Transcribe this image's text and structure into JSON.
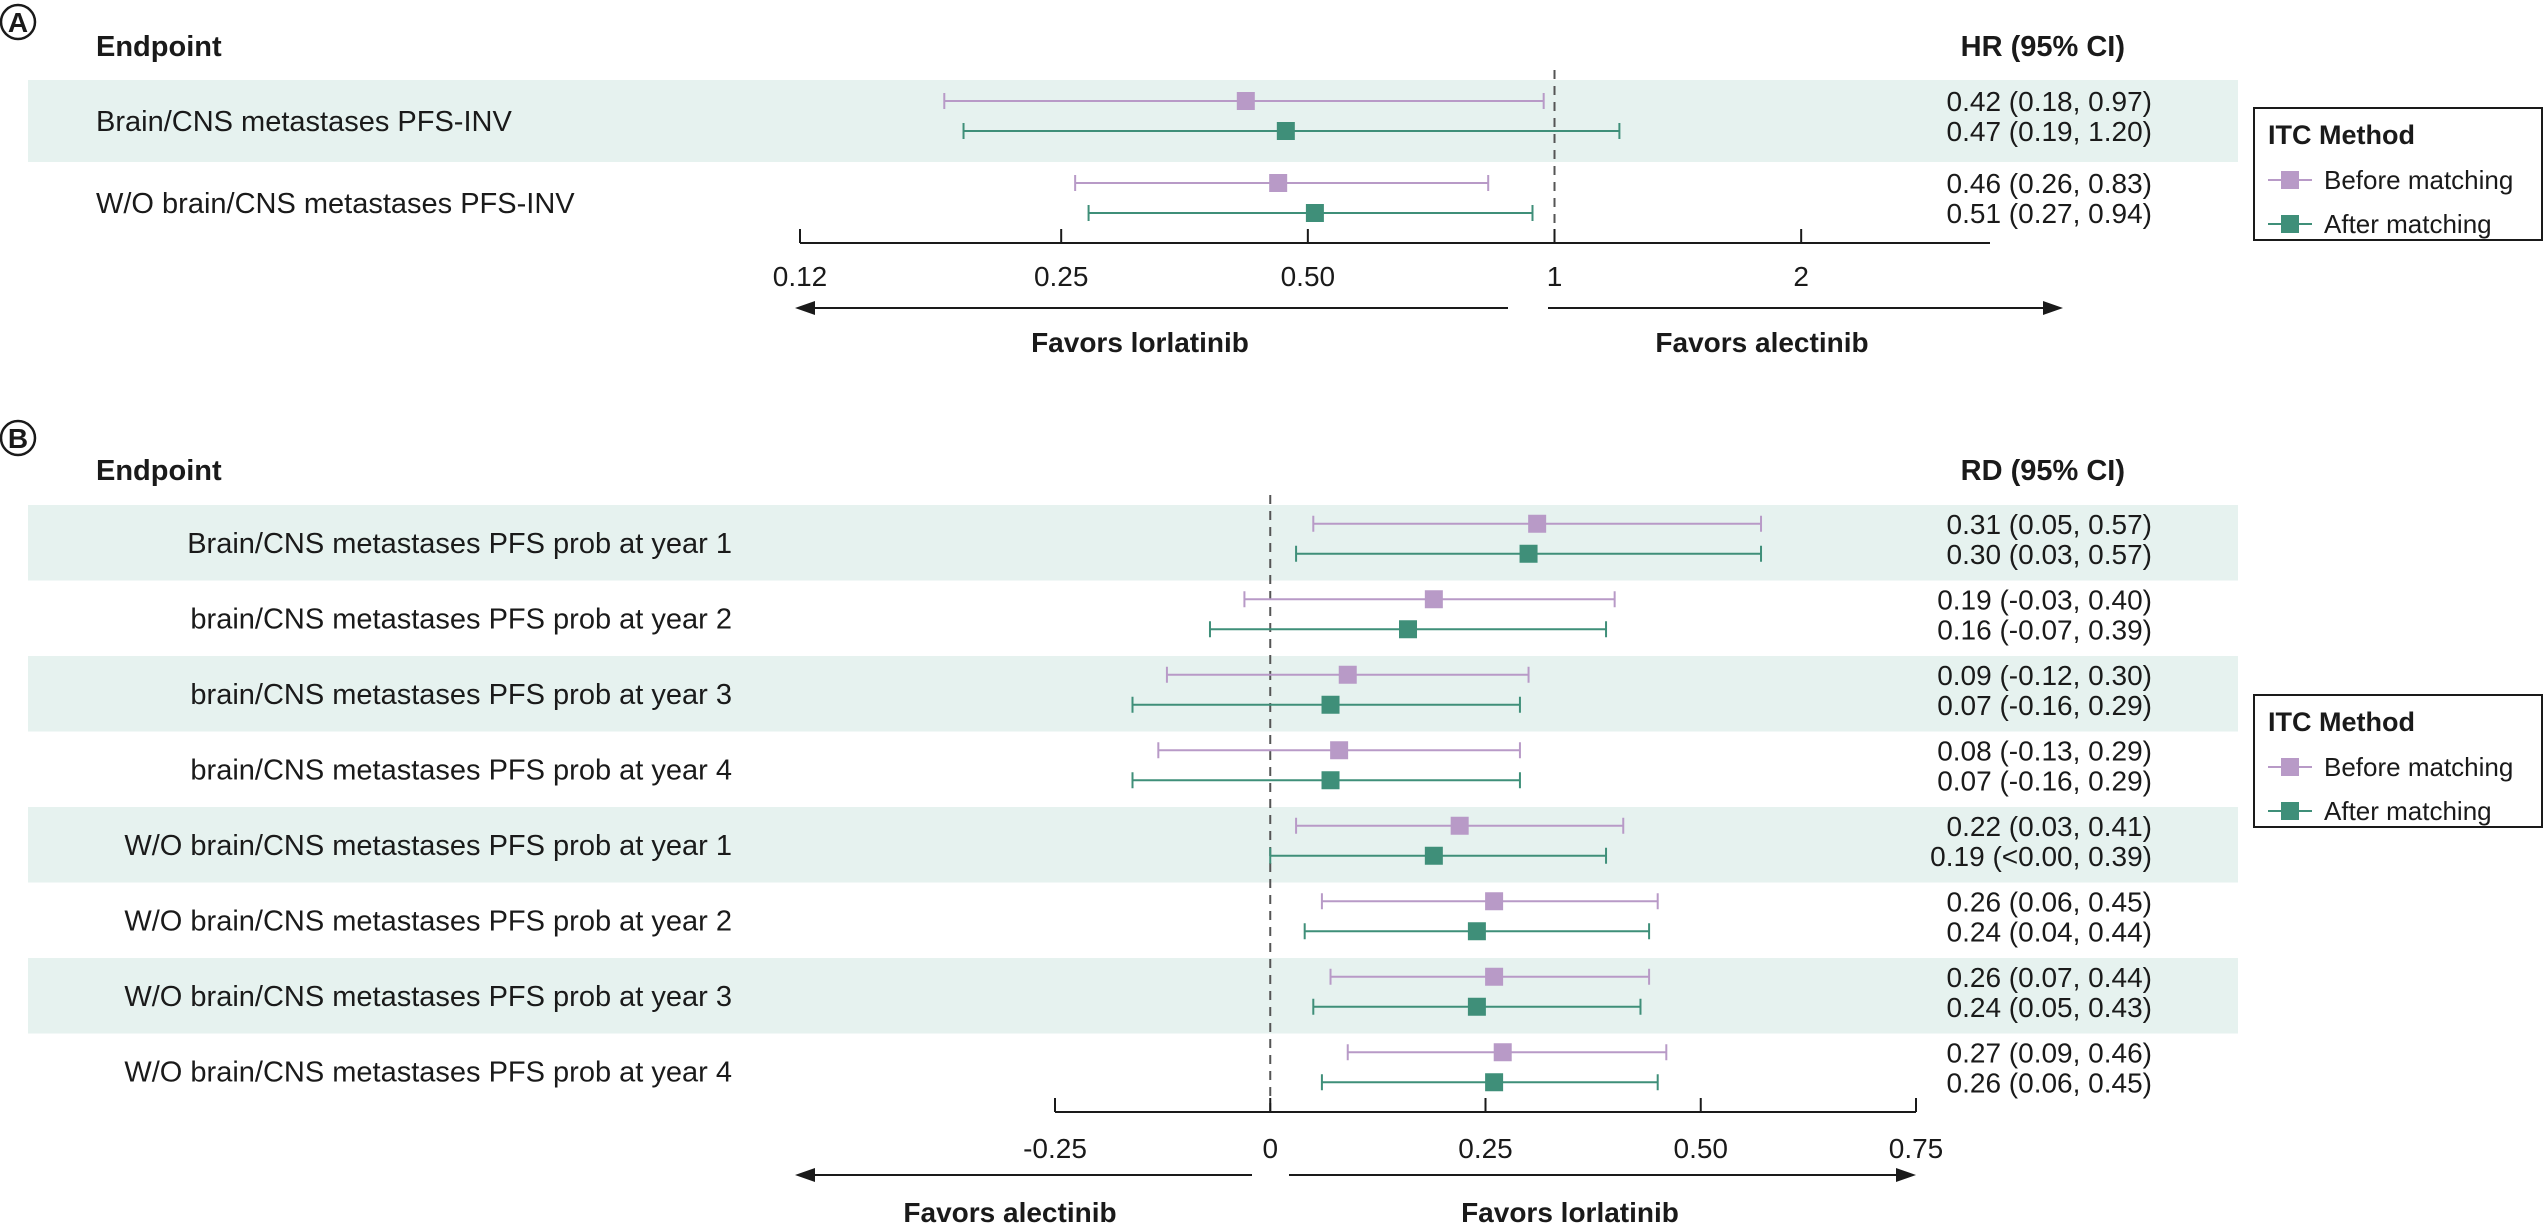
{
  "colors": {
    "before": "#b89ac7",
    "after": "#3f8f79",
    "band": "#e6f2ef",
    "text": "#1a1a1a"
  },
  "chart_data": [
    {
      "type": "forest",
      "panel_label": "A",
      "endpoint_header": "Endpoint",
      "estimate_header": "HR (95% CI)",
      "scale": "log",
      "xlim": [
        0.12,
        3.4
      ],
      "ticks": [
        0.12,
        0.25,
        0.5,
        1,
        2
      ],
      "tick_labels": [
        "0.12",
        "0.25",
        "0.50",
        "1",
        "2"
      ],
      "reference_line": 1,
      "direction_left": "Favors lorlatinib",
      "direction_right": "Favors alectinib",
      "legend": {
        "title": "ITC Method",
        "items": [
          "Before matching",
          "After matching"
        ],
        "placement": "right"
      },
      "rows": [
        {
          "endpoint": "Brain/CNS metastases PFS-INV",
          "before": {
            "est": 0.42,
            "lo": 0.18,
            "hi": 0.97,
            "label": "0.42 (0.18, 0.97)"
          },
          "after": {
            "est": 0.47,
            "lo": 0.19,
            "hi": 1.2,
            "label": "0.47 (0.19, 1.20)"
          }
        },
        {
          "endpoint": "W/O brain/CNS metastases PFS-INV",
          "before": {
            "est": 0.46,
            "lo": 0.26,
            "hi": 0.83,
            "label": "0.46 (0.26, 0.83)"
          },
          "after": {
            "est": 0.51,
            "lo": 0.27,
            "hi": 0.94,
            "label": "0.51 (0.27, 0.94)"
          }
        }
      ]
    },
    {
      "type": "forest",
      "panel_label": "B",
      "endpoint_header": "Endpoint",
      "estimate_header": "RD (95% CI)",
      "scale": "linear",
      "xlim": [
        -0.25,
        0.75
      ],
      "ticks": [
        -0.25,
        0,
        0.25,
        0.5,
        0.75
      ],
      "tick_labels": [
        "-0.25",
        "0",
        "0.25",
        "0.50",
        "0.75"
      ],
      "reference_line": 0,
      "direction_left": "Favors alectinib",
      "direction_right": "Favors lorlatinib",
      "legend": {
        "title": "ITC Method",
        "items": [
          "Before matching",
          "After matching"
        ],
        "placement": "right"
      },
      "rows": [
        {
          "endpoint": "Brain/CNS metastases PFS prob at year 1",
          "before": {
            "est": 0.31,
            "lo": 0.05,
            "hi": 0.57,
            "label": "0.31 (0.05, 0.57)"
          },
          "after": {
            "est": 0.3,
            "lo": 0.03,
            "hi": 0.57,
            "label": "0.30 (0.03, 0.57)"
          }
        },
        {
          "endpoint": "brain/CNS metastases PFS prob at year 2",
          "before": {
            "est": 0.19,
            "lo": -0.03,
            "hi": 0.4,
            "label": "0.19 (-0.03, 0.40)"
          },
          "after": {
            "est": 0.16,
            "lo": -0.07,
            "hi": 0.39,
            "label": "0.16 (-0.07, 0.39)"
          }
        },
        {
          "endpoint": "brain/CNS metastases PFS prob at year 3",
          "before": {
            "est": 0.09,
            "lo": -0.12,
            "hi": 0.3,
            "label": "0.09 (-0.12, 0.30)"
          },
          "after": {
            "est": 0.07,
            "lo": -0.16,
            "hi": 0.29,
            "label": "0.07 (-0.16, 0.29)"
          }
        },
        {
          "endpoint": "brain/CNS metastases PFS prob at year 4",
          "before": {
            "est": 0.08,
            "lo": -0.13,
            "hi": 0.29,
            "label": "0.08 (-0.13, 0.29)"
          },
          "after": {
            "est": 0.07,
            "lo": -0.16,
            "hi": 0.29,
            "label": "0.07 (-0.16, 0.29)"
          }
        },
        {
          "endpoint": "W/O brain/CNS metastases PFS prob at year 1",
          "before": {
            "est": 0.22,
            "lo": 0.03,
            "hi": 0.41,
            "label": "0.22 (0.03, 0.41)"
          },
          "after": {
            "est": 0.19,
            "lo": 0.0,
            "hi": 0.39,
            "label": "0.19 (<0.00, 0.39)"
          }
        },
        {
          "endpoint": "W/O brain/CNS metastases PFS prob at year 2",
          "before": {
            "est": 0.26,
            "lo": 0.06,
            "hi": 0.45,
            "label": "0.26 (0.06, 0.45)"
          },
          "after": {
            "est": 0.24,
            "lo": 0.04,
            "hi": 0.44,
            "label": "0.24 (0.04, 0.44)"
          }
        },
        {
          "endpoint": "W/O brain/CNS metastases PFS prob at year 3",
          "before": {
            "est": 0.26,
            "lo": 0.07,
            "hi": 0.44,
            "label": "0.26 (0.07, 0.44)"
          },
          "after": {
            "est": 0.24,
            "lo": 0.05,
            "hi": 0.43,
            "label": "0.24 (0.05, 0.43)"
          }
        },
        {
          "endpoint": "W/O brain/CNS metastases PFS prob at year 4",
          "before": {
            "est": 0.27,
            "lo": 0.09,
            "hi": 0.46,
            "label": "0.27 (0.09, 0.46)"
          },
          "after": {
            "est": 0.26,
            "lo": 0.06,
            "hi": 0.45,
            "label": "0.26 (0.06, 0.45)"
          }
        }
      ]
    }
  ]
}
